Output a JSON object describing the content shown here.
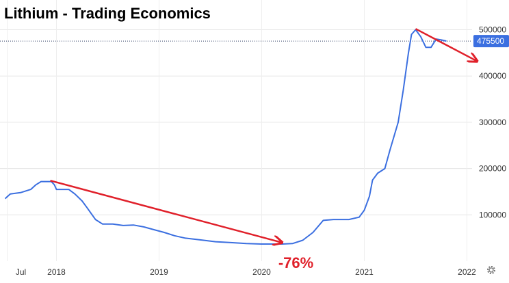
{
  "chart_data": {
    "type": "line",
    "title": "Lithium - Trading Economics",
    "xlabel": "",
    "ylabel": "",
    "x_tick_labels": [
      "Jul",
      "2018",
      "2019",
      "2020",
      "2021",
      "2022"
    ],
    "y_ticks": [
      100000,
      200000,
      300000,
      400000,
      500000
    ],
    "y_tick_labels": [
      "100000",
      "200000",
      "300000",
      "400000",
      "500000"
    ],
    "ylim": [
      0,
      520000
    ],
    "grid": true,
    "legend": "none",
    "last_value": 475500,
    "last_value_label": "475500",
    "colors": {
      "line": "#3b6fe0",
      "badge": "#3b6fe0",
      "annotation": "#e0202a"
    },
    "series": [
      {
        "values": [
          [
            2017.5,
            135000
          ],
          [
            2017.55,
            145000
          ],
          [
            2017.65,
            148000
          ],
          [
            2017.75,
            155000
          ],
          [
            2017.8,
            165000
          ],
          [
            2017.85,
            172000
          ],
          [
            2017.95,
            172000
          ],
          [
            2017.98,
            165000
          ],
          [
            2018.0,
            155000
          ],
          [
            2018.12,
            155000
          ],
          [
            2018.18,
            145000
          ],
          [
            2018.25,
            130000
          ],
          [
            2018.3,
            115000
          ],
          [
            2018.38,
            90000
          ],
          [
            2018.45,
            80000
          ],
          [
            2018.55,
            80000
          ],
          [
            2018.65,
            77000
          ],
          [
            2018.75,
            78000
          ],
          [
            2018.85,
            74000
          ],
          [
            2018.95,
            68000
          ],
          [
            2019.05,
            62000
          ],
          [
            2019.15,
            55000
          ],
          [
            2019.25,
            50000
          ],
          [
            2019.4,
            46000
          ],
          [
            2019.55,
            42000
          ],
          [
            2019.7,
            40000
          ],
          [
            2019.85,
            38000
          ],
          [
            2020.0,
            37000
          ],
          [
            2020.2,
            37000
          ],
          [
            2020.3,
            38000
          ],
          [
            2020.4,
            45000
          ],
          [
            2020.5,
            62000
          ],
          [
            2020.6,
            88000
          ],
          [
            2020.7,
            90000
          ],
          [
            2020.85,
            90000
          ],
          [
            2020.95,
            95000
          ],
          [
            2021.0,
            110000
          ],
          [
            2021.05,
            140000
          ],
          [
            2021.08,
            175000
          ],
          [
            2021.13,
            190000
          ],
          [
            2021.2,
            200000
          ],
          [
            2021.25,
            240000
          ],
          [
            2021.33,
            300000
          ],
          [
            2021.38,
            370000
          ],
          [
            2021.43,
            450000
          ],
          [
            2021.46,
            490000
          ],
          [
            2021.5,
            500000
          ],
          [
            2021.55,
            485000
          ],
          [
            2021.6,
            462000
          ],
          [
            2021.65,
            462000
          ],
          [
            2021.7,
            480000
          ],
          [
            2021.75,
            478000
          ],
          [
            2021.8,
            475500
          ]
        ]
      }
    ],
    "annotations": [
      {
        "kind": "arrow",
        "from": [
          2017.94,
          174000
        ],
        "to": [
          2020.2,
          40000
        ],
        "label": "-76%"
      },
      {
        "kind": "arrow",
        "from": [
          2021.5,
          502000
        ],
        "to": [
          2022.1,
          432000
        ],
        "label": ""
      }
    ]
  },
  "toolbar": {
    "settings_icon": "gear-icon"
  }
}
